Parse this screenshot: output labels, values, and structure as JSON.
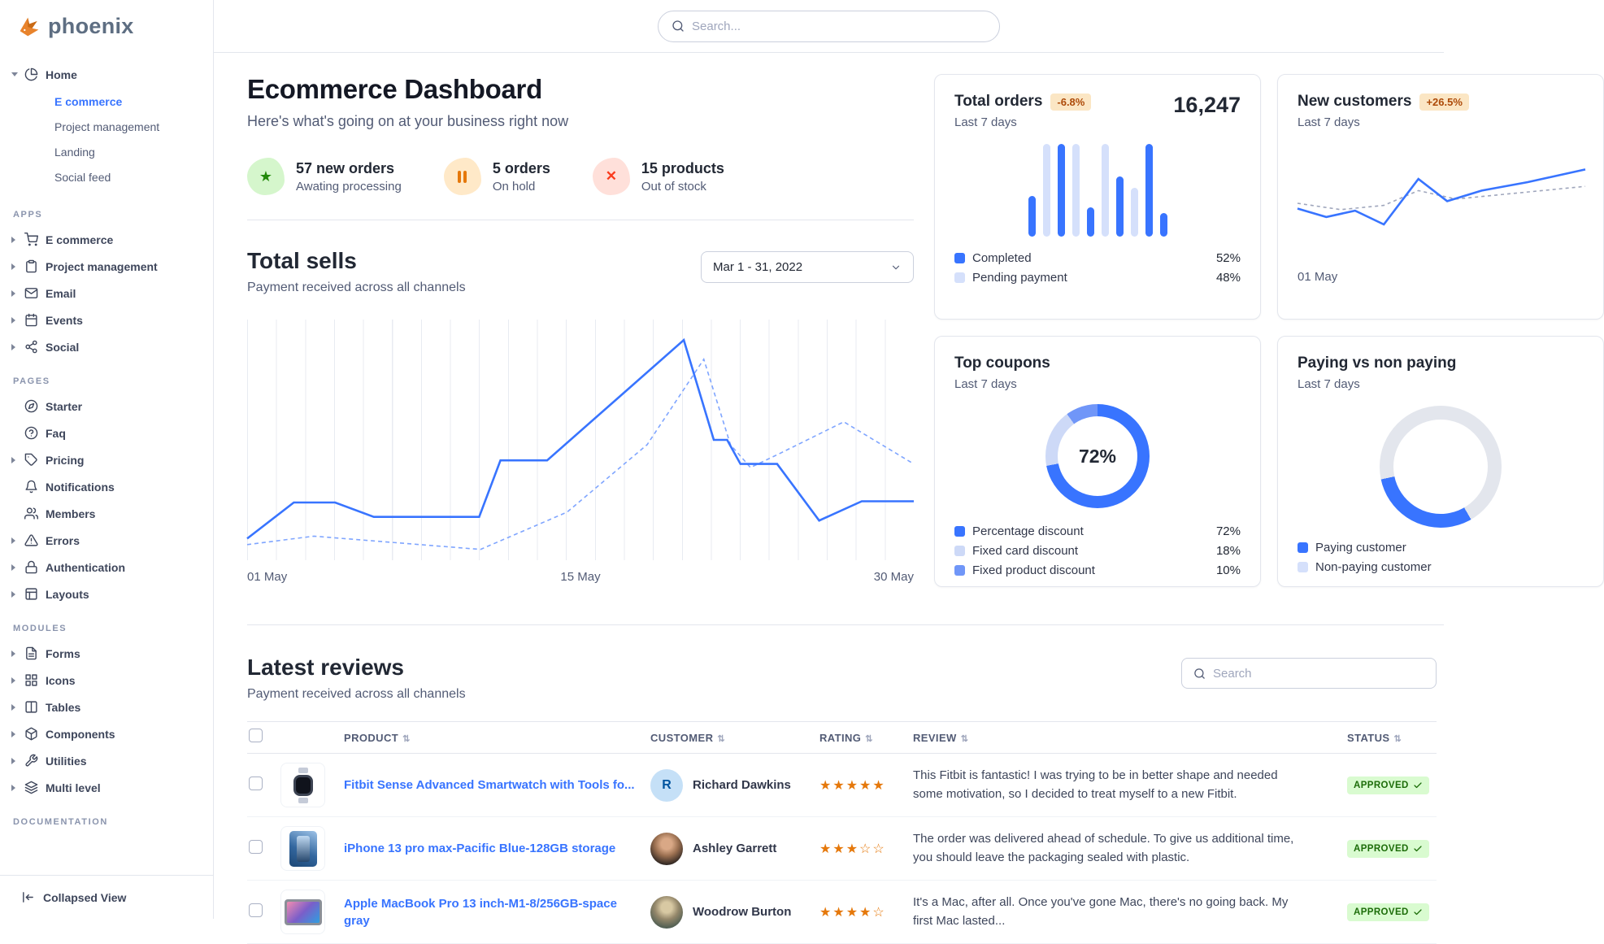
{
  "brand": {
    "name": "phoenix"
  },
  "topnav": {
    "search_placeholder": "Search..."
  },
  "colors": {
    "primary": "#3874ff",
    "primary_subtle": "#d5e0fb",
    "success": "#25b003",
    "warning": "#e5780b",
    "danger": "#ed2000"
  },
  "sidebar": {
    "home": {
      "label": "Home",
      "icon": "pie-chart-icon",
      "items": [
        {
          "label": "E commerce",
          "active": true
        },
        {
          "label": "Project management",
          "active": false
        },
        {
          "label": "Landing",
          "active": false
        },
        {
          "label": "Social feed",
          "active": false
        }
      ]
    },
    "sections": [
      {
        "title": "APPS",
        "items": [
          {
            "label": "E commerce",
            "icon": "shopping-cart-icon",
            "expandable": true
          },
          {
            "label": "Project management",
            "icon": "clipboard-icon",
            "expandable": true
          },
          {
            "label": "Email",
            "icon": "mail-icon",
            "expandable": true
          },
          {
            "label": "Events",
            "icon": "calendar-icon",
            "expandable": true
          },
          {
            "label": "Social",
            "icon": "share-icon",
            "expandable": true
          }
        ]
      },
      {
        "title": "PAGES",
        "items": [
          {
            "label": "Starter",
            "icon": "compass-icon",
            "expandable": false
          },
          {
            "label": "Faq",
            "icon": "help-circle-icon",
            "expandable": false
          },
          {
            "label": "Pricing",
            "icon": "tag-icon",
            "expandable": true
          },
          {
            "label": "Notifications",
            "icon": "bell-icon",
            "expandable": false
          },
          {
            "label": "Members",
            "icon": "users-icon",
            "expandable": false
          },
          {
            "label": "Errors",
            "icon": "alert-triangle-icon",
            "expandable": true
          },
          {
            "label": "Authentication",
            "icon": "lock-icon",
            "expandable": true
          },
          {
            "label": "Layouts",
            "icon": "layout-icon",
            "expandable": true
          }
        ]
      },
      {
        "title": "MODULES",
        "items": [
          {
            "label": "Forms",
            "icon": "file-text-icon",
            "expandable": true
          },
          {
            "label": "Icons",
            "icon": "grid-icon",
            "expandable": true
          },
          {
            "label": "Tables",
            "icon": "table-icon",
            "expandable": true
          },
          {
            "label": "Components",
            "icon": "package-icon",
            "expandable": true
          },
          {
            "label": "Utilities",
            "icon": "tool-icon",
            "expandable": true
          },
          {
            "label": "Multi level",
            "icon": "layers-icon",
            "expandable": true
          }
        ]
      },
      {
        "title": "DOCUMENTATION",
        "items": []
      }
    ],
    "footer": {
      "label": "Collapsed View",
      "icon": "collapse-sidebar-icon"
    }
  },
  "dashboard": {
    "title": "Ecommerce Dashboard",
    "subtitle": "Here's what's going on at your business right now",
    "stats": [
      {
        "value": "57 new orders",
        "caption": "Awating processing",
        "icon": "star-icon",
        "color": "green"
      },
      {
        "value": "5 orders",
        "caption": "On hold",
        "icon": "pause-icon",
        "color": "yellow"
      },
      {
        "value": "15 products",
        "caption": "Out of stock",
        "icon": "x-icon",
        "color": "red"
      }
    ]
  },
  "total_sells": {
    "title": "Total sells",
    "subtitle": "Payment received across all channels",
    "date_range": "Mar 1 - 31, 2022",
    "x_labels": [
      "01 May",
      "15 May",
      "30 May"
    ]
  },
  "cards": {
    "total_orders": {
      "title": "Total orders",
      "badge": "-6.8%",
      "period": "Last 7 days",
      "value": "16,247",
      "legend": [
        {
          "label": "Completed",
          "value": "52%"
        },
        {
          "label": "Pending payment",
          "value": "48%"
        }
      ]
    },
    "new_customers": {
      "title": "New customers",
      "badge": "+26.5%",
      "period": "Last 7 days",
      "x_label": "01 May"
    },
    "top_coupons": {
      "title": "Top coupons",
      "period": "Last 7 days",
      "center_value": "72%",
      "legend": [
        {
          "label": "Percentage discount",
          "value": "72%"
        },
        {
          "label": "Fixed card discount",
          "value": "18%"
        },
        {
          "label": "Fixed product discount",
          "value": "10%"
        }
      ]
    },
    "paying": {
      "title": "Paying vs non paying",
      "period": "Last 7 days",
      "legend": [
        {
          "label": "Paying customer"
        },
        {
          "label": "Non-paying customer"
        }
      ]
    }
  },
  "charts": {
    "total_sells": {
      "solid": [
        [
          0,
          0.91
        ],
        [
          0.07,
          0.76
        ],
        [
          0.132,
          0.76
        ],
        [
          0.19,
          0.82
        ],
        [
          0.348,
          0.82
        ],
        [
          0.38,
          0.585
        ],
        [
          0.45,
          0.585
        ],
        [
          0.655,
          0.085
        ],
        [
          0.7,
          0.5
        ],
        [
          0.72,
          0.5
        ],
        [
          0.74,
          0.6
        ],
        [
          0.795,
          0.6
        ],
        [
          0.858,
          0.835
        ],
        [
          0.922,
          0.755
        ],
        [
          1,
          0.755
        ]
      ],
      "dashed": [
        [
          0,
          0.935
        ],
        [
          0.1,
          0.9
        ],
        [
          0.35,
          0.955
        ],
        [
          0.48,
          0.8
        ],
        [
          0.6,
          0.52
        ],
        [
          0.685,
          0.165
        ],
        [
          0.725,
          0.52
        ],
        [
          0.755,
          0.615
        ],
        [
          0.8,
          0.555
        ],
        [
          0.895,
          0.425
        ],
        [
          1,
          0.6
        ]
      ]
    },
    "total_orders_bars": [
      {
        "h": 0.42,
        "c": "p"
      },
      {
        "h": 0.95,
        "c": "s"
      },
      {
        "h": 0.95,
        "c": "p"
      },
      {
        "h": 0.95,
        "c": "s"
      },
      {
        "h": 0.3,
        "c": "p"
      },
      {
        "h": 0.95,
        "c": "s"
      },
      {
        "h": 0.62,
        "c": "p"
      },
      {
        "h": 0.5,
        "c": "s"
      },
      {
        "h": 0.95,
        "c": "p"
      },
      {
        "h": 0.24,
        "c": "p"
      }
    ],
    "new_customers": {
      "solid": [
        [
          0,
          0.55
        ],
        [
          0.1,
          0.63
        ],
        [
          0.2,
          0.57
        ],
        [
          0.3,
          0.7
        ],
        [
          0.42,
          0.27
        ],
        [
          0.52,
          0.48
        ],
        [
          0.64,
          0.38
        ],
        [
          0.8,
          0.3
        ],
        [
          1,
          0.18
        ]
      ],
      "dashed": [
        [
          0,
          0.5
        ],
        [
          0.15,
          0.56
        ],
        [
          0.3,
          0.52
        ],
        [
          0.42,
          0.38
        ],
        [
          0.55,
          0.46
        ],
        [
          0.7,
          0.42
        ],
        [
          1,
          0.34
        ]
      ]
    },
    "top_coupons": {
      "values": [
        72,
        18,
        10
      ],
      "colors": [
        "#3874ff",
        "#cdd9f7",
        "#7096f8"
      ]
    },
    "paying": {
      "paying_pct": 30,
      "non_paying_color": "#e3e6ed"
    }
  },
  "reviews": {
    "title": "Latest reviews",
    "subtitle": "Payment received across all channels",
    "search_placeholder": "Search",
    "columns": [
      "PRODUCT",
      "CUSTOMER",
      "RATING",
      "REVIEW",
      "STATUS"
    ],
    "rows": [
      {
        "product": "Fitbit Sense Advanced Smartwatch with Tools fo...",
        "customer": "Richard Dawkins",
        "initials": "R",
        "rating": "5",
        "stars_filled": "★★★★★",
        "stars_empty": "",
        "review": "This Fitbit is fantastic! I was trying to be in better shape and needed some motivation, so I decided to treat myself to a new Fitbit.",
        "status": "APPROVED"
      },
      {
        "product": "iPhone 13 pro max-Pacific Blue-128GB storage",
        "customer": "Ashley Garrett",
        "rating": "3",
        "stars_filled": "★★★",
        "stars_empty": "☆☆",
        "review": "The order was delivered ahead of schedule. To give us additional time, you should leave the packaging sealed with plastic.",
        "status": "APPROVED"
      },
      {
        "product": "Apple MacBook Pro 13 inch-M1-8/256GB-space gray",
        "customer": "Woodrow Burton",
        "rating": "4",
        "stars_filled": "★★★★",
        "stars_empty": "☆",
        "review": "It's a Mac, after all. Once you've gone Mac, there's no going back. My first Mac lasted...",
        "status": "APPROVED"
      }
    ]
  }
}
